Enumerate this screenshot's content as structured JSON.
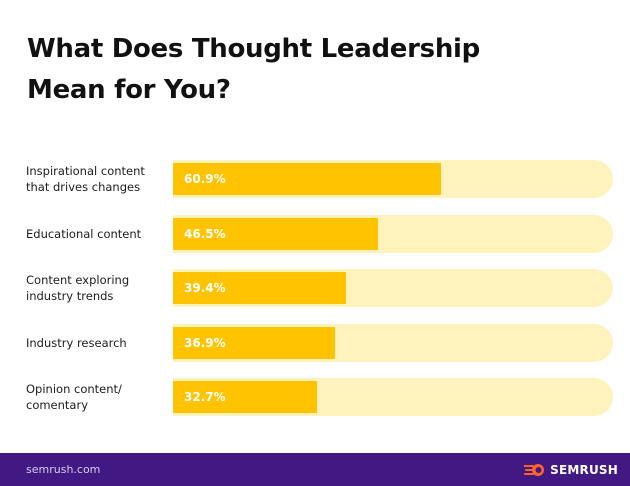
{
  "chart_data": {
    "type": "bar",
    "orientation": "horizontal",
    "title": "What Does Thought Leadership Mean for You?",
    "categories": [
      "Inspirational content that drives changes",
      "Educational content",
      "Content exploring industry trends",
      "Industry research",
      "Opinion content/ comentary"
    ],
    "category_lines": [
      [
        "Inspirational content",
        "that drives changes"
      ],
      [
        "Educational content"
      ],
      [
        "Content exploring",
        "industry trends"
      ],
      [
        "Industry research"
      ],
      [
        "Opinion content/",
        "comentary"
      ]
    ],
    "values": [
      60.9,
      46.5,
      39.4,
      36.9,
      32.7
    ],
    "value_labels": [
      "60.9%",
      "46.5%",
      "39.4%",
      "36.9%",
      "32.7%"
    ],
    "unit": "%",
    "xlim": [
      0,
      100
    ],
    "xlabel": "",
    "ylabel": "",
    "grid": false,
    "colors": {
      "fill": "#ffc300",
      "track": "#fff2bd",
      "value_text": "#ffffff"
    }
  },
  "title_lines": [
    "What Does Thought Leadership",
    "Mean for You?"
  ],
  "footer": {
    "link": "semrush.com",
    "brand": "SEMRUSH",
    "background": "#421983"
  }
}
